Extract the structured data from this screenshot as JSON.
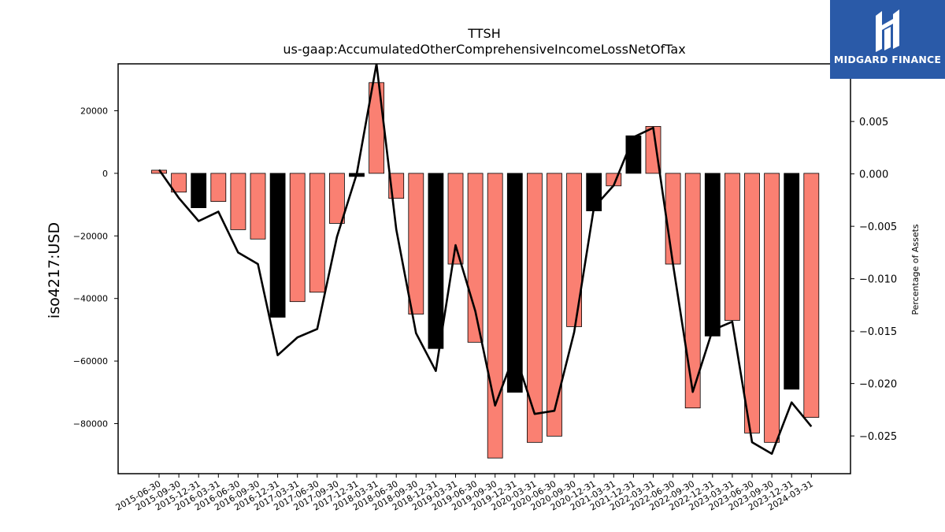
{
  "chart_data": {
    "type": "bar",
    "title": "TTSH",
    "subtitle": "us-gaap:AccumulatedOtherComprehensiveIncomeLossNetOfTax",
    "ylabel": "iso4217:USD",
    "y2label": "Percentage of Assets",
    "categories": [
      "2015-06-30",
      "2015-09-30",
      "2015-12-31",
      "2016-03-31",
      "2016-06-30",
      "2016-09-30",
      "2016-12-31",
      "2017-03-31",
      "2017-06-30",
      "2017-09-30",
      "2017-12-31",
      "2018-03-31",
      "2018-06-30",
      "2018-09-30",
      "2018-12-31",
      "2019-03-31",
      "2019-06-30",
      "2019-09-30",
      "2019-12-31",
      "2020-03-31",
      "2020-06-30",
      "2020-09-30",
      "2020-12-31",
      "2021-03-31",
      "2021-12-31",
      "2022-03-31",
      "2022-06-30",
      "2022-09-30",
      "2022-12-31",
      "2023-03-31",
      "2023-06-30",
      "2023-09-30",
      "2023-12-31",
      "2024-03-31"
    ],
    "series": [
      {
        "type": "bar",
        "values": [
          1000,
          -6000,
          -11000,
          -9000,
          -18000,
          -21000,
          -46000,
          -41000,
          -38000,
          -16000,
          -1000,
          29000,
          -8000,
          -45000,
          -56000,
          -29000,
          -54000,
          -91000,
          -70000,
          -86000,
          -84000,
          -49000,
          -12000,
          -4000,
          12000,
          15000,
          -29000,
          -75000,
          -52000,
          -47000,
          -83000,
          -86000,
          -69000,
          -78000
        ],
        "colors": [
          "#fa8072",
          "#fa8072",
          "#000000",
          "#fa8072",
          "#fa8072",
          "#fa8072",
          "#000000",
          "#fa8072",
          "#fa8072",
          "#fa8072",
          "#000000",
          "#fa8072",
          "#fa8072",
          "#fa8072",
          "#000000",
          "#fa8072",
          "#fa8072",
          "#fa8072",
          "#000000",
          "#fa8072",
          "#fa8072",
          "#fa8072",
          "#000000",
          "#fa8072",
          "#000000",
          "#fa8072",
          "#fa8072",
          "#fa8072",
          "#000000",
          "#fa8072",
          "#fa8072",
          "#fa8072",
          "#000000",
          "#fa8072"
        ]
      },
      {
        "type": "line",
        "axis": "right",
        "values": [
          0.0004,
          -0.0023,
          -0.0045,
          -0.0036,
          -0.0075,
          -0.0086,
          -0.0173,
          -0.0156,
          -0.0148,
          -0.006,
          0.0,
          0.0105,
          -0.0053,
          -0.0152,
          -0.0188,
          -0.0068,
          -0.0131,
          -0.0221,
          -0.0171,
          -0.0229,
          -0.0226,
          -0.0151,
          -0.0032,
          -0.0011,
          0.0035,
          0.0044,
          -0.0086,
          -0.0208,
          -0.0149,
          -0.0141,
          -0.0256,
          -0.0267,
          -0.0218,
          -0.0241
        ]
      }
    ],
    "ylim": [
      -96000,
      35000
    ],
    "y2lim": [
      -0.0286,
      0.0105
    ],
    "yticks": [
      -80000,
      -60000,
      -40000,
      -20000,
      0,
      20000
    ],
    "y2ticks": [
      -0.025,
      -0.02,
      -0.015,
      -0.01,
      -0.005,
      0.0,
      0.005
    ],
    "ytick_labels": [
      "−80000",
      "−60000",
      "−40000",
      "−20000",
      "0",
      "20000"
    ],
    "y2tick_labels": [
      "−0.025",
      "−0.020",
      "−0.015",
      "−0.010",
      "−0.005",
      "0.000",
      "0.005"
    ],
    "grid": false,
    "legend": "none"
  },
  "logo": {
    "text": "MIDGARD FINANCE",
    "colors": {
      "background": "#2a5aa8",
      "foreground": "#ffffff"
    }
  }
}
